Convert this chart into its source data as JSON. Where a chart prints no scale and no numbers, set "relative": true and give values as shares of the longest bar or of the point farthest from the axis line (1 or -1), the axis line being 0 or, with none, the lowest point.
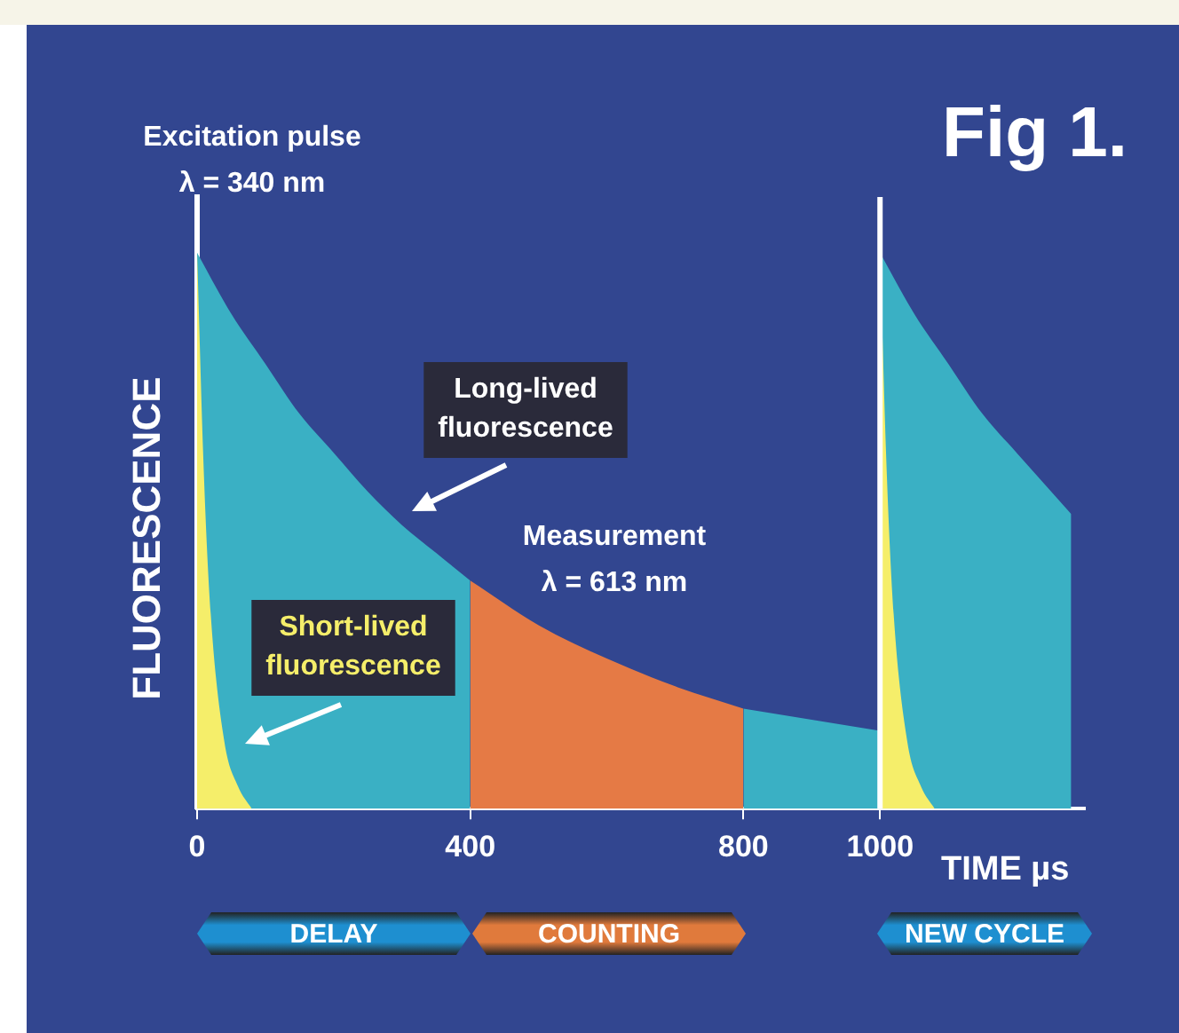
{
  "chart_data": {
    "type": "area",
    "title": "Fig 1.",
    "xlabel": "TIME µs",
    "ylabel": "FLUORESCENCE",
    "relative": true,
    "xlim": [
      0,
      1300
    ],
    "xticks": [
      0,
      400,
      800,
      {
        "value": 1000,
        "label": "1000"
      }
    ],
    "grid": false,
    "legend": false,
    "series": [
      {
        "color": "#3ab0c4",
        "x": [
          0,
          50,
          100,
          150,
          200,
          250,
          300,
          350,
          400
        ],
        "values": [
          1,
          0.89,
          0.8,
          0.71,
          0.64,
          0.57,
          0.51,
          0.46,
          0.41
        ]
      },
      {
        "color": "#e57a45",
        "x": [
          400,
          500,
          600,
          700,
          800
        ],
        "values": [
          0.41,
          0.33,
          0.27,
          0.22,
          0.18
        ]
      },
      {
        "color": "#3ab0c4",
        "x": [
          800,
          900,
          1000
        ],
        "values": [
          0.18,
          0.16,
          0.14
        ]
      },
      {
        "color": "#3ab0c4",
        "x": [
          1000,
          1050,
          1100,
          1150,
          1200,
          1280
        ],
        "values": [
          1,
          0.89,
          0.8,
          0.71,
          0.64,
          0.53
        ]
      },
      {
        "color": "#f5ee6a",
        "x": [
          0,
          10,
          20,
          40,
          60,
          80
        ],
        "values": [
          1,
          0.6,
          0.35,
          0.12,
          0.04,
          0
        ]
      },
      {
        "color": "#f5ee6a",
        "x": [
          1000,
          1010,
          1020,
          1040,
          1060,
          1080
        ],
        "values": [
          1,
          0.6,
          0.35,
          0.12,
          0.04,
          0
        ]
      }
    ],
    "ref_lines": [
      {
        "axis": "x",
        "value": 1000,
        "color": "#ffffff"
      }
    ],
    "annotations": [
      "Excitation pulse\nλ = 340 nm",
      "Long-lived\nfluorescence",
      "Short-lived\nfluorescence",
      "Measurement\nλ = 613 nm",
      "DELAY",
      "COUNTING",
      "NEW CYCLE"
    ]
  }
}
